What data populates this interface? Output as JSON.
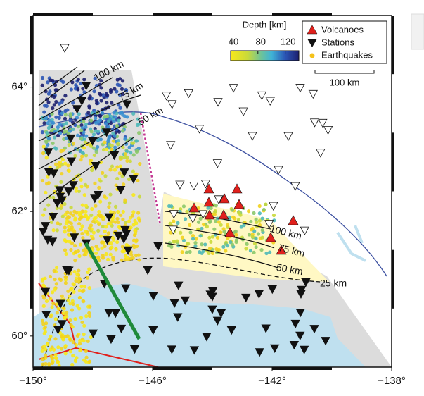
{
  "map": {
    "lon_range": [
      -150,
      -138
    ],
    "lat_range": [
      59.5,
      65.15
    ],
    "lon_ticks": [
      {
        "value": -150,
        "label": "−150°"
      },
      {
        "value": -146,
        "label": "−146°"
      },
      {
        "value": -142,
        "label": "−142°"
      },
      {
        "value": -138,
        "label": "−138°"
      }
    ],
    "lat_ticks": [
      {
        "value": 60,
        "label": "60°"
      },
      {
        "value": 62,
        "label": "62°"
      },
      {
        "value": 64,
        "label": "64°"
      }
    ],
    "colorbar": {
      "title": "Depth [km]",
      "range": [
        40,
        140
      ],
      "ticks": [
        40,
        80,
        120
      ]
    },
    "legend": [
      "Volcanoes",
      "Stations",
      "Earthquakes"
    ],
    "scale_bar": "100 km",
    "contour_labels": {
      "west": [
        "100 km",
        "75 km",
        "50 km"
      ],
      "east": [
        "100 km",
        "75 km",
        "50 km",
        "25 km"
      ]
    }
  }
}
